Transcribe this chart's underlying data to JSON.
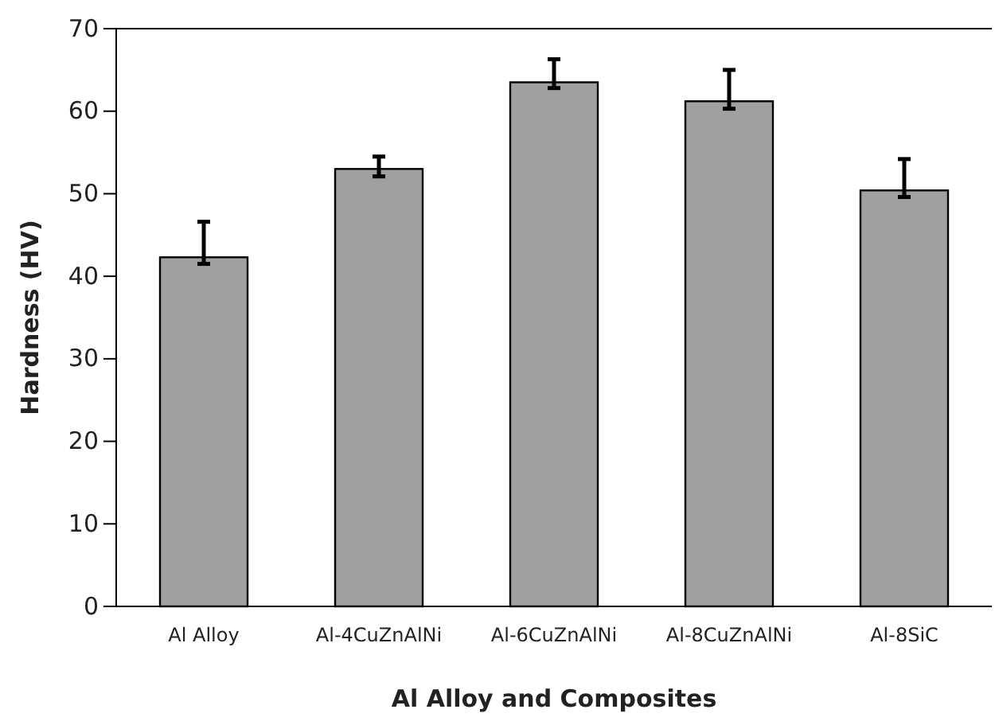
{
  "chart_data": {
    "type": "bar",
    "xlabel": "Al Alloy and Composites",
    "ylabel": "Hardness (HV)",
    "categories": [
      "Al Alloy",
      "Al-4CuZnAlNi",
      "Al-6CuZnAlNi",
      "Al-8CuZnAlNi",
      "Al-8SiC"
    ],
    "values": [
      42.3,
      53.0,
      63.5,
      61.2,
      50.4
    ],
    "errors": [
      [
        41.5,
        46.6
      ],
      [
        52.1,
        54.5
      ],
      [
        62.8,
        66.3
      ],
      [
        60.3,
        65.0
      ],
      [
        49.6,
        54.2
      ]
    ],
    "color": "#a0a0a0",
    "ylim": [
      0,
      70
    ],
    "yticks": [
      0,
      10,
      20,
      30,
      40,
      50,
      60,
      70
    ],
    "grid": false
  }
}
